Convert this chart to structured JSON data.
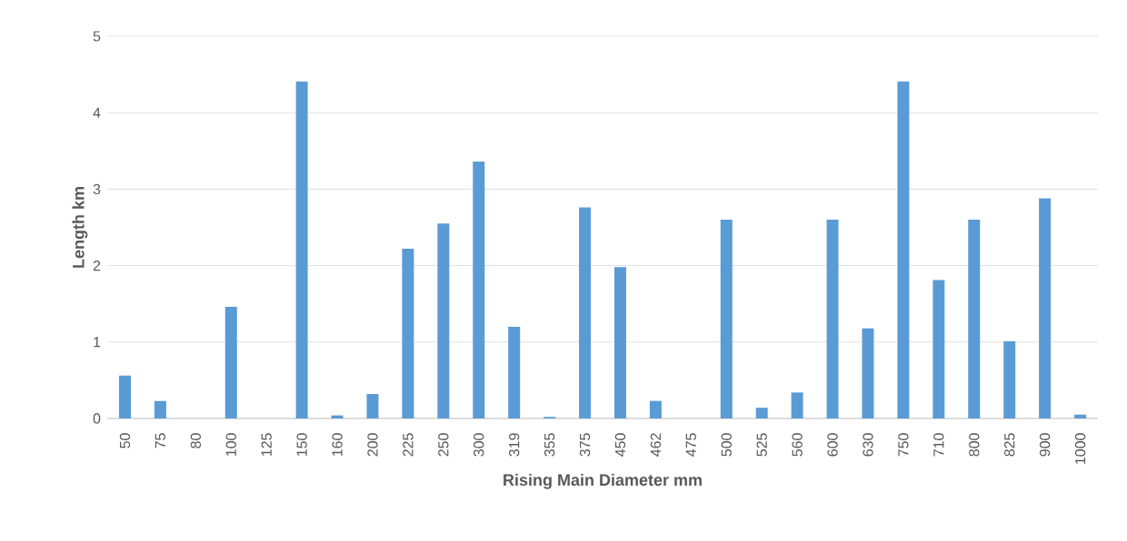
{
  "chart_data": {
    "type": "bar",
    "xlabel": "Rising Main Diameter mm",
    "ylabel": "Length km",
    "categories": [
      "50",
      "75",
      "80",
      "100",
      "125",
      "150",
      "160",
      "200",
      "225",
      "250",
      "300",
      "319",
      "355",
      "375",
      "450",
      "462",
      "475",
      "500",
      "525",
      "560",
      "600",
      "630",
      "750",
      "710",
      "800",
      "825",
      "900",
      "1000"
    ],
    "values": [
      0.56,
      0.23,
      0,
      1.46,
      0,
      4.41,
      0.04,
      0.32,
      2.22,
      2.55,
      3.36,
      1.2,
      0.02,
      2.76,
      1.98,
      0.23,
      0,
      2.6,
      0.14,
      0.34,
      2.6,
      1.18,
      4.41,
      1.81,
      2.6,
      1.01,
      2.88,
      0.05
    ],
    "color": "#5b9bd5",
    "ylim": [
      0,
      5
    ],
    "yticks": [
      0,
      1,
      2,
      3,
      4,
      5
    ],
    "grid": "y"
  }
}
